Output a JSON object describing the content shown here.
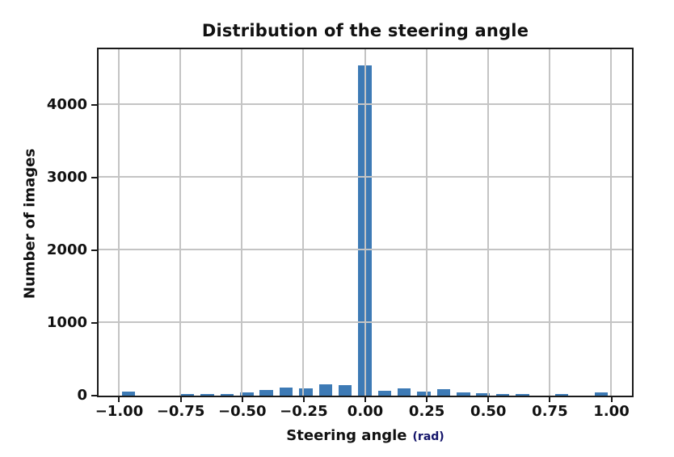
{
  "chart_data": {
    "type": "bar",
    "title": "Distribution of the steering angle",
    "xlabel": "Steering angle",
    "xlabel_unit": "(rad)",
    "ylabel": "Number of images",
    "xlim": [
      -1.082,
      1.082
    ],
    "ylim": [
      0,
      4760
    ],
    "grid": true,
    "grid_position": "above-bars",
    "bin_width": 0.08,
    "bar_width": 0.054,
    "x_ticks": [
      -1.0,
      -0.75,
      -0.5,
      -0.25,
      0.0,
      0.25,
      0.5,
      0.75,
      1.0
    ],
    "x_tick_labels": [
      "−1.00",
      "−0.75",
      "−0.50",
      "−0.25",
      "0.00",
      "0.25",
      "0.50",
      "0.75",
      "1.00"
    ],
    "y_ticks": [
      0,
      1000,
      2000,
      3000,
      4000
    ],
    "y_tick_labels": [
      "0",
      "1000",
      "2000",
      "3000",
      "4000"
    ],
    "categories": [
      -0.96,
      -0.88,
      -0.8,
      -0.72,
      -0.64,
      -0.56,
      -0.48,
      -0.4,
      -0.32,
      -0.24,
      -0.16,
      -0.08,
      0.0,
      0.08,
      0.16,
      0.24,
      0.32,
      0.4,
      0.48,
      0.56,
      0.64,
      0.72,
      0.8,
      0.88,
      0.96
    ],
    "values": [
      55,
      0,
      0,
      20,
      25,
      27,
      41,
      74,
      111,
      105,
      155,
      140,
      4550,
      70,
      95,
      61,
      87,
      50,
      31,
      17,
      17,
      0,
      20,
      0,
      40
    ],
    "colors": {
      "bar": "#3d7ab5",
      "grid": "#c4c4c4",
      "spine": "#1a1a1a",
      "text": "#111111",
      "unit_text": "#15166b"
    }
  }
}
